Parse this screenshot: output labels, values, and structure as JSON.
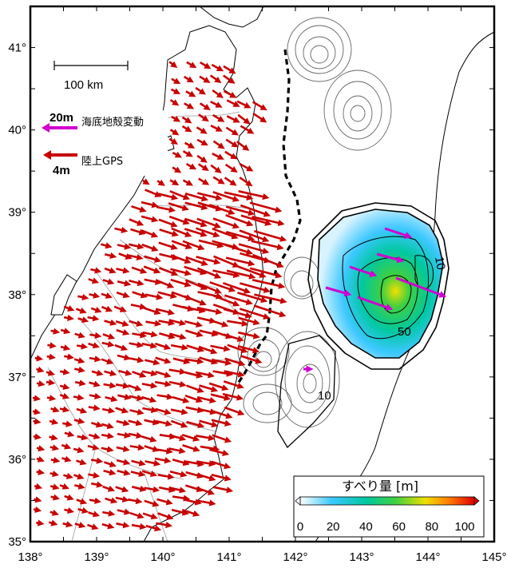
{
  "x_axis": {
    "min": 138,
    "max": 145,
    "ticks": [
      "138°",
      "139°",
      "140°",
      "141°",
      "142°",
      "143°",
      "144°",
      "145°"
    ]
  },
  "y_axis": {
    "min": 35,
    "max": 41.5,
    "ticks": [
      "35°",
      "36°",
      "37°",
      "38°",
      "39°",
      "40°",
      "41°"
    ]
  },
  "scale_bar": {
    "label": "100 km"
  },
  "legend": {
    "seafloor": {
      "value": "20m",
      "label": "海底地殻変動",
      "color": "#d000d0"
    },
    "land": {
      "value": "4m",
      "label": "陸上GPS",
      "color": "#c80000"
    }
  },
  "colorbar": {
    "title": "すべり量 [m]",
    "ticks": [
      "0",
      "20",
      "40",
      "60",
      "80",
      "100"
    ],
    "range": [
      0,
      100
    ],
    "colors": [
      "#ffffff",
      "#3cc8ff",
      "#00c8a0",
      "#40d040",
      "#f0e000",
      "#ff8000",
      "#e00000"
    ]
  },
  "contour_labels": [
    "10",
    "50",
    "10"
  ],
  "icons": {
    "colorbar_arrow": "triangle-arrow-icon"
  }
}
